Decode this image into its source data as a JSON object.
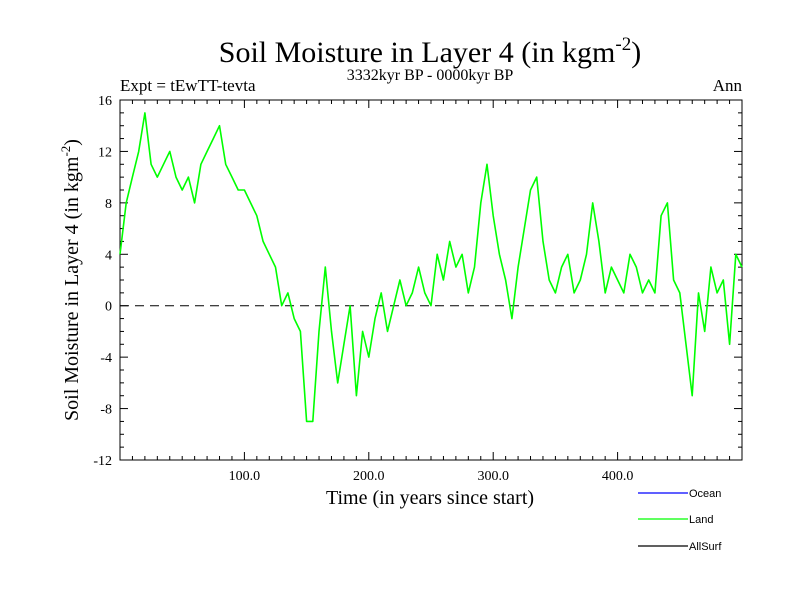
{
  "chart_data": {
    "type": "line",
    "title": "Soil Moisture in Layer 4 (in kgm",
    "title_sup": "-2",
    "title_close": ")",
    "subtitle_left": "Expt = tEwTT-tevta",
    "subtitle_center": "3332kyr BP - 0000kyr BP",
    "subtitle_right": "Ann",
    "xlabel": "Time (in years since start)",
    "ylabel": "Soil Moisture in Layer 4 (in kgm",
    "ylabel_sup": "-2",
    "ylabel_close": ")",
    "xlim": [
      0,
      500
    ],
    "ylim": [
      -12,
      16
    ],
    "x_ticks": [
      100,
      200,
      300,
      400
    ],
    "x_tick_labels": [
      "100.0",
      "200.0",
      "300.0",
      "400.0"
    ],
    "y_ticks": [
      -12,
      -8,
      -4,
      0,
      4,
      8,
      12,
      16
    ],
    "y_tick_labels": [
      "-12",
      "-8",
      "-4",
      "0",
      "4",
      "8",
      "12",
      "16"
    ],
    "zero_line": true,
    "colors": {
      "ocean": "#0000ff",
      "land": "#00ff00",
      "allsurf": "#000000",
      "zero_line": "#000000"
    },
    "legend": [
      {
        "name": "Ocean",
        "color": "#0000ff"
      },
      {
        "name": "Land",
        "color": "#00ff00"
      },
      {
        "name": "AllSurf",
        "color": "#000000"
      }
    ],
    "series": [
      {
        "name": "Land",
        "color": "#00ff00",
        "x": [
          0,
          5,
          10,
          15,
          20,
          25,
          30,
          35,
          40,
          45,
          50,
          55,
          60,
          65,
          70,
          75,
          80,
          85,
          90,
          95,
          100,
          105,
          110,
          115,
          120,
          125,
          130,
          135,
          140,
          145,
          150,
          155,
          160,
          165,
          170,
          175,
          180,
          185,
          190,
          195,
          200,
          205,
          210,
          215,
          220,
          225,
          230,
          235,
          240,
          245,
          250,
          255,
          260,
          265,
          270,
          275,
          280,
          285,
          290,
          295,
          300,
          305,
          310,
          315,
          320,
          325,
          330,
          335,
          340,
          345,
          350,
          355,
          360,
          365,
          370,
          375,
          380,
          385,
          390,
          395,
          400,
          405,
          410,
          415,
          420,
          425,
          430,
          435,
          440,
          445,
          450,
          455,
          460,
          465,
          470,
          475,
          480,
          485,
          490,
          495,
          500
        ],
        "values": [
          4,
          8,
          10,
          12,
          15,
          11,
          10,
          11,
          12,
          10,
          9,
          10,
          8,
          11,
          12,
          13,
          14,
          11,
          10,
          9,
          9,
          8,
          7,
          5,
          4,
          3,
          0,
          1,
          -1,
          -2,
          -9,
          -9,
          -2,
          3,
          -2,
          -6,
          -3,
          0,
          -7,
          -2,
          -4,
          -1,
          1,
          -2,
          0,
          2,
          0,
          1,
          3,
          1,
          0,
          4,
          2,
          5,
          3,
          4,
          1,
          3,
          8,
          11,
          7,
          4,
          2,
          -1,
          3,
          6,
          9,
          10,
          5,
          2,
          1,
          3,
          4,
          1,
          2,
          4,
          8,
          5,
          1,
          3,
          2,
          1,
          4,
          3,
          1,
          2,
          1,
          7,
          8,
          2,
          1,
          -3,
          -7,
          1,
          -2,
          3,
          1,
          2,
          -3,
          4,
          3
        ]
      }
    ]
  }
}
